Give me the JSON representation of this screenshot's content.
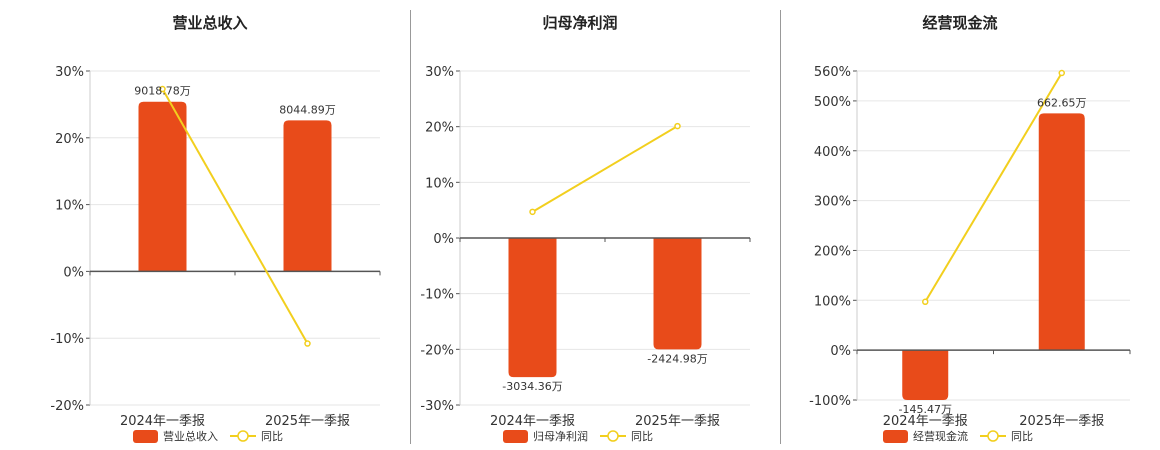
{
  "colors": {
    "bar": "#E84B1A",
    "line": "#F2CF1E",
    "grid": "#E6E6E6",
    "axis": "#555555",
    "divider": "#999999"
  },
  "chart_data": [
    {
      "type": "bar+line",
      "title": "营业总收入",
      "categories": [
        "2024年一季报",
        "2025年一季报"
      ],
      "series": [
        {
          "name": "营业总收入",
          "kind": "bar",
          "values": [
            25.4,
            22.6
          ],
          "labels": [
            "9018.78万",
            "8044.89万"
          ]
        },
        {
          "name": "同比",
          "kind": "line",
          "values": [
            27.3,
            -10.8
          ]
        }
      ],
      "yticks": [
        30,
        20,
        10,
        0,
        -10,
        -20
      ],
      "ytick_labels": [
        "30%",
        "20%",
        "10%",
        "0%",
        "-10%",
        "-20%"
      ],
      "ylim": [
        -20,
        30
      ]
    },
    {
      "type": "bar+line",
      "title": "归母净利润",
      "categories": [
        "2024年一季报",
        "2025年一季报"
      ],
      "series": [
        {
          "name": "归母净利润",
          "kind": "bar",
          "values": [
            -25,
            -20
          ],
          "labels": [
            "-3034.36万",
            "-2424.98万"
          ]
        },
        {
          "name": "同比",
          "kind": "line",
          "values": [
            4.7,
            20.1
          ]
        }
      ],
      "yticks": [
        30,
        20,
        10,
        0,
        -10,
        -20,
        -30
      ],
      "ytick_labels": [
        "30%",
        "20%",
        "10%",
        "0%",
        "-10%",
        "-20%",
        "-30%"
      ],
      "ylim": [
        -30,
        30
      ]
    },
    {
      "type": "bar+line",
      "title": "经营现金流",
      "categories": [
        "2024年一季报",
        "2025年一季报"
      ],
      "series": [
        {
          "name": "经营现金流",
          "kind": "bar",
          "values": [
            -100,
            475
          ],
          "labels": [
            "-145.47万",
            "662.65万"
          ]
        },
        {
          "name": "同比",
          "kind": "line",
          "values": [
            97,
            556
          ]
        }
      ],
      "yticks": [
        560,
        500,
        400,
        300,
        200,
        100,
        0,
        -100
      ],
      "ytick_labels": [
        "560%",
        "500%",
        "400%",
        "300%",
        "200%",
        "100%",
        "0%",
        "-100%"
      ],
      "ylim": [
        -100,
        560
      ]
    }
  ]
}
